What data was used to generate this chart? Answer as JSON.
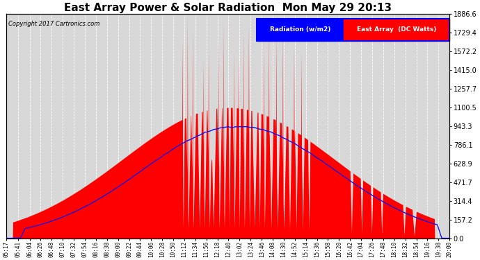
{
  "title": "East Array Power & Solar Radiation  Mon May 29 20:13",
  "copyright": "Copyright 2017 Cartronics.com",
  "ylabel_right_ticks": [
    0.0,
    157.2,
    314.4,
    471.7,
    628.9,
    786.1,
    943.3,
    1100.5,
    1257.7,
    1415.0,
    1572.2,
    1729.4,
    1886.6
  ],
  "background_color": "#ffffff",
  "plot_bg_color": "#d8d8d8",
  "grid_color": "#ffffff",
  "legend_labels": [
    "Radiation (w/m2)",
    "East Array  (DC Watts)"
  ],
  "legend_colors": [
    "#0000ff",
    "#ff0000"
  ],
  "title_fontsize": 11,
  "axis_fontsize": 7,
  "ymax": 1886.6,
  "ymin": 0.0,
  "tick_times_str": [
    "05:17",
    "05:41",
    "06:04",
    "06:26",
    "06:48",
    "07:10",
    "07:32",
    "07:54",
    "08:16",
    "08:38",
    "09:00",
    "09:22",
    "09:44",
    "10:06",
    "10:28",
    "10:50",
    "11:12",
    "11:34",
    "11:56",
    "12:18",
    "12:40",
    "13:02",
    "13:24",
    "13:46",
    "14:08",
    "14:30",
    "14:52",
    "15:14",
    "15:36",
    "15:58",
    "16:20",
    "16:42",
    "17:04",
    "17:26",
    "17:48",
    "18:10",
    "18:32",
    "18:54",
    "19:16",
    "19:38",
    "20:00"
  ]
}
